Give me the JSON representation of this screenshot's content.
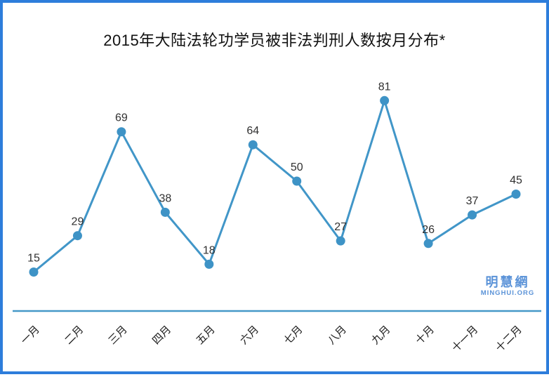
{
  "page": {
    "background": "#ffffff",
    "border_color": "#2d7ddb"
  },
  "chart_data": {
    "type": "line",
    "title": "2015年大陆法轮功学员被非法判刑人数按月分布*",
    "categories": [
      "一月",
      "二月",
      "三月",
      "四月",
      "五月",
      "六月",
      "七月",
      "八月",
      "九月",
      "十月",
      "十一月",
      "十二月"
    ],
    "values": [
      15,
      29,
      69,
      38,
      18,
      64,
      50,
      27,
      81,
      26,
      37,
      45
    ],
    "xlabel": "",
    "ylabel": "",
    "ylim": [
      0,
      93
    ],
    "grid": false,
    "legend": "none",
    "data_labels_shown": true,
    "line_color": "#4196c8",
    "marker_color": "#3e93c6",
    "axis_line_color": "#4598c8",
    "value_label_color": "#303030",
    "tick_label_color": "#1a1a1a"
  },
  "watermark": {
    "line1": "明慧網",
    "line2": "MINGHUI.ORG",
    "color": "#5b93d8"
  }
}
